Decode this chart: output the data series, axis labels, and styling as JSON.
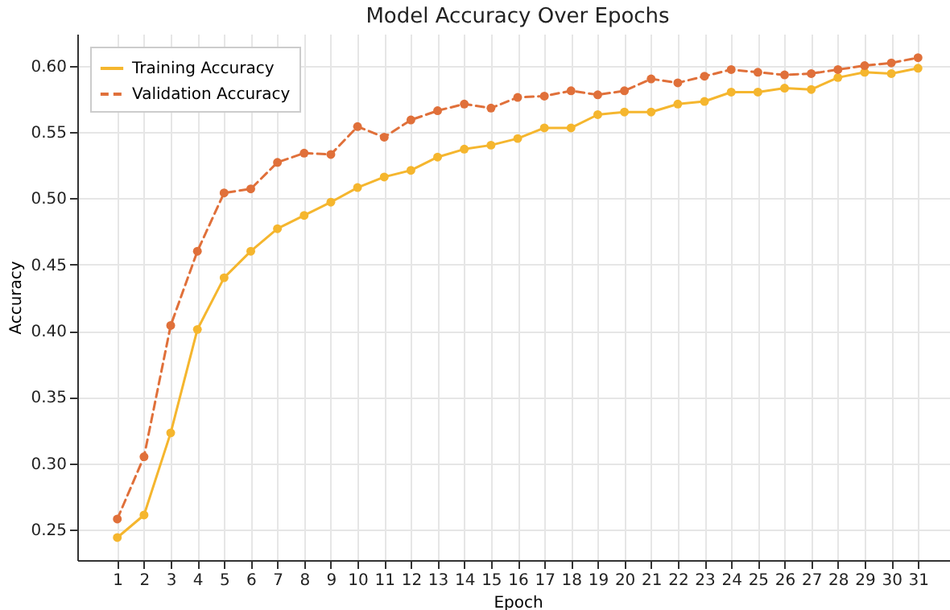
{
  "chart_data": {
    "type": "line",
    "title": "Model Accuracy Over Epochs",
    "xlabel": "Epoch",
    "ylabel": "Accuracy",
    "x": [
      1,
      2,
      3,
      4,
      5,
      6,
      7,
      8,
      9,
      10,
      11,
      12,
      13,
      14,
      15,
      16,
      17,
      18,
      19,
      20,
      21,
      22,
      23,
      24,
      25,
      26,
      27,
      28,
      29,
      30,
      31
    ],
    "series": [
      {
        "name": "Training Accuracy",
        "color": "#f5b62e",
        "line_style": "solid",
        "values": [
          0.244,
          0.261,
          0.323,
          0.401,
          0.44,
          0.46,
          0.477,
          0.487,
          0.497,
          0.508,
          0.516,
          0.521,
          0.531,
          0.537,
          0.54,
          0.545,
          0.553,
          0.553,
          0.563,
          0.565,
          0.565,
          0.571,
          0.573,
          0.58,
          0.58,
          0.583,
          0.582,
          0.591,
          0.595,
          0.594,
          0.598
        ]
      },
      {
        "name": "Validation Accuracy",
        "color": "#e0703a",
        "line_style": "dashed",
        "values": [
          0.258,
          0.305,
          0.404,
          0.46,
          0.504,
          0.507,
          0.527,
          0.534,
          0.533,
          0.554,
          0.546,
          0.559,
          0.566,
          0.571,
          0.568,
          0.576,
          0.577,
          0.581,
          0.578,
          0.581,
          0.59,
          0.587,
          0.592,
          0.597,
          0.595,
          0.593,
          0.594,
          0.597,
          0.6,
          0.602,
          0.606
        ]
      }
    ],
    "xlim": [
      -0.5,
      32.5
    ],
    "xticks": [
      1,
      2,
      3,
      4,
      5,
      6,
      7,
      8,
      9,
      10,
      11,
      12,
      13,
      14,
      15,
      16,
      17,
      18,
      19,
      20,
      21,
      22,
      23,
      24,
      25,
      26,
      27,
      28,
      29,
      30,
      31
    ],
    "ylim": [
      0.227,
      0.624
    ],
    "yticks": [
      0.25,
      {
        "value": 0.3,
        "label": "0.30"
      },
      0.35,
      {
        "value": 0.4,
        "label": "0.40"
      },
      0.45,
      {
        "value": 0.5,
        "label": "0.50"
      },
      0.55,
      {
        "value": 0.6,
        "label": "0.60"
      }
    ],
    "grid": true,
    "legend": "top left",
    "marker": "circle"
  }
}
